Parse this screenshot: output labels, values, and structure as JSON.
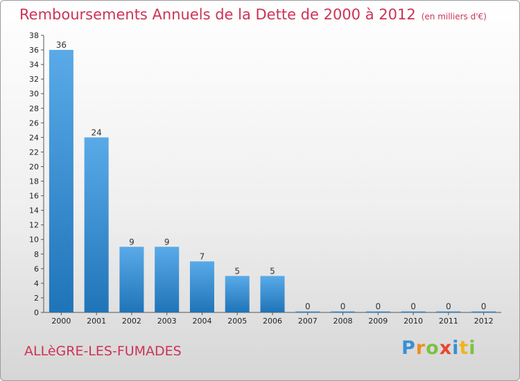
{
  "header": {
    "title": "Remboursements Annuels de la Dette de 2000 à 2012",
    "unit": "(en milliers d'€)"
  },
  "footer": {
    "commune": "ALLèGRE-LES-FUMADES",
    "logo": "Proxiti"
  },
  "chart_data": {
    "type": "bar",
    "title": "Remboursements Annuels de la Dette de 2000 à 2012",
    "xlabel": "",
    "ylabel": "",
    "categories": [
      "2000",
      "2001",
      "2002",
      "2003",
      "2004",
      "2005",
      "2006",
      "2007",
      "2008",
      "2009",
      "2010",
      "2011",
      "2012"
    ],
    "values": [
      36,
      24,
      9,
      9,
      7,
      5,
      5,
      0,
      0,
      0,
      0,
      0,
      0
    ],
    "ylim": [
      0,
      38
    ],
    "ytick_step": 2,
    "grid": false,
    "bar_color": "#3a8fd6"
  }
}
